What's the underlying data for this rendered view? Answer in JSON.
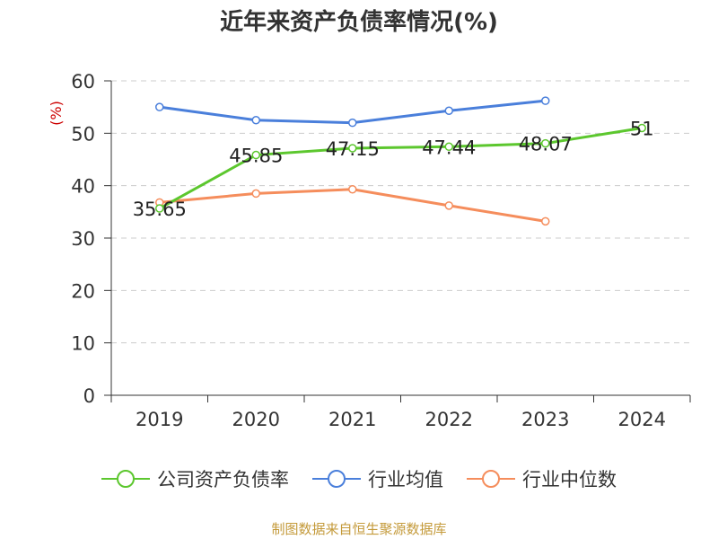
{
  "title": "近年来资产负债率情况(%)",
  "source": "制图数据来自恒生聚源数据库",
  "chart_data": {
    "type": "line",
    "title": "近年来资产负债率情况(%)",
    "ylabel": "(%)",
    "ylim": [
      0,
      60
    ],
    "yticks": [
      0,
      10,
      20,
      30,
      40,
      50,
      60
    ],
    "categories": [
      "2019",
      "2020",
      "2021",
      "2022",
      "2023",
      "2024"
    ],
    "grid": true,
    "legend_position": "bottom",
    "series": [
      {
        "name": "公司资产负债率",
        "color": "#5cc72e",
        "values": [
          35.65,
          45.85,
          47.15,
          47.44,
          48.07,
          51
        ],
        "labels": [
          "35.65",
          "45.85",
          "47.15",
          "47.44",
          "48.07",
          "51"
        ]
      },
      {
        "name": "行业均值",
        "color": "#4a7fdb",
        "values": [
          55,
          52.5,
          52,
          54.3,
          56.2,
          null
        ],
        "labels": []
      },
      {
        "name": "行业中位数",
        "color": "#f58d5c",
        "values": [
          36.8,
          38.5,
          39.3,
          36.2,
          33.2,
          null
        ],
        "labels": []
      }
    ]
  }
}
